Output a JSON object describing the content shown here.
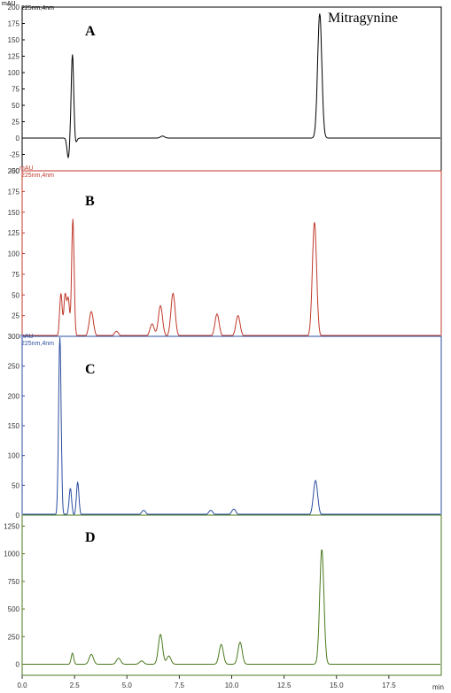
{
  "chart_data": [
    {
      "type": "line",
      "panel_label": "A",
      "color": "#000000",
      "unit": "mAU",
      "detector": "225nm,4nm",
      "annotation": "Mitragynine",
      "ylim": [
        -50,
        200
      ],
      "yticks": [
        "-50",
        "-25",
        "0",
        "25",
        "50",
        "75",
        "100",
        "125",
        "150",
        "175",
        "200"
      ],
      "peaks": [
        {
          "x": 2.2,
          "y": -30
        },
        {
          "x": 2.4,
          "y": 128
        },
        {
          "x": 2.55,
          "y": -8
        },
        {
          "x": 6.7,
          "y": 3
        },
        {
          "x": 14.2,
          "y": 190
        }
      ]
    },
    {
      "type": "line",
      "panel_label": "B",
      "color": "#c0392b",
      "unit": "mAU",
      "detector": "225nm,4nm",
      "ylim": [
        0,
        200
      ],
      "yticks": [
        "25",
        "50",
        "75",
        "100",
        "125",
        "150",
        "175",
        "200"
      ],
      "peaks": [
        {
          "x": 1.85,
          "y": 52
        },
        {
          "x": 2.05,
          "y": 50
        },
        {
          "x": 2.2,
          "y": 45
        },
        {
          "x": 2.42,
          "y": 142
        },
        {
          "x": 3.3,
          "y": 30
        },
        {
          "x": 4.5,
          "y": 6
        },
        {
          "x": 6.2,
          "y": 15
        },
        {
          "x": 6.6,
          "y": 37
        },
        {
          "x": 7.2,
          "y": 52
        },
        {
          "x": 9.3,
          "y": 27
        },
        {
          "x": 10.3,
          "y": 25
        },
        {
          "x": 13.95,
          "y": 138
        }
      ]
    },
    {
      "type": "line",
      "panel_label": "C",
      "color": "#2b4ea0",
      "unit": "mAU",
      "detector": "225nm,4nm",
      "ylim": [
        0,
        300
      ],
      "yticks": [
        "0",
        "50",
        "100",
        "150",
        "200",
        "250",
        "300"
      ],
      "peaks": [
        {
          "x": 1.8,
          "y": 300
        },
        {
          "x": 2.3,
          "y": 45
        },
        {
          "x": 2.65,
          "y": 55
        },
        {
          "x": 5.8,
          "y": 8
        },
        {
          "x": 9.0,
          "y": 8
        },
        {
          "x": 10.1,
          "y": 10
        },
        {
          "x": 14.0,
          "y": 58
        }
      ]
    },
    {
      "type": "line",
      "panel_label": "D",
      "color": "#4a7a1e",
      "unit": "",
      "detector": "",
      "ylim": [
        -100,
        1350
      ],
      "yticks": [
        "0",
        "250",
        "500",
        "750",
        "1000",
        "1250"
      ],
      "peaks": [
        {
          "x": 2.4,
          "y": 100
        },
        {
          "x": 3.3,
          "y": 90
        },
        {
          "x": 4.6,
          "y": 55
        },
        {
          "x": 5.7,
          "y": 30
        },
        {
          "x": 6.6,
          "y": 270
        },
        {
          "x": 7.0,
          "y": 75
        },
        {
          "x": 9.5,
          "y": 180
        },
        {
          "x": 10.4,
          "y": 200
        },
        {
          "x": 14.3,
          "y": 1040
        }
      ]
    }
  ],
  "x_axis": {
    "range": [
      0,
      20
    ],
    "ticks": [
      "0.0",
      "2.5",
      "5.0",
      "7.5",
      "10.0",
      "12.5",
      "15.0",
      "17.5"
    ],
    "unit": "min"
  }
}
